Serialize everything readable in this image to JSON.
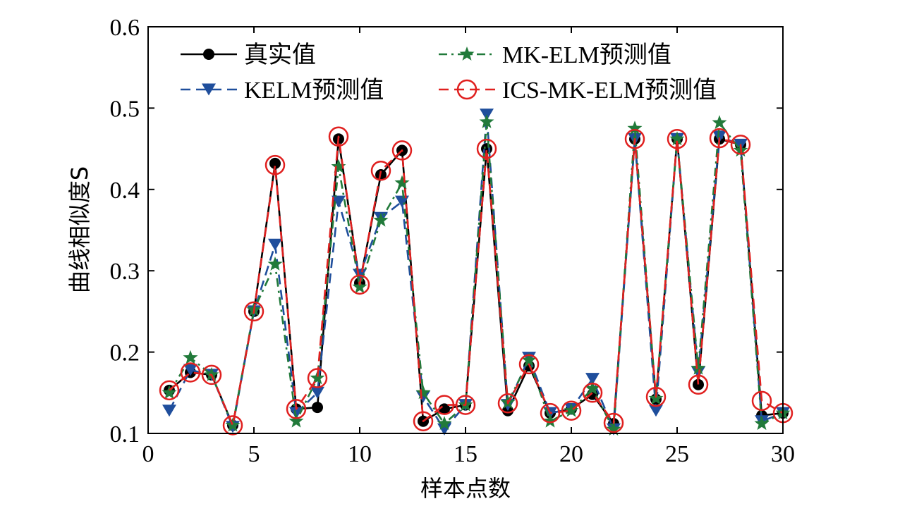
{
  "chart_data": {
    "type": "line",
    "xlabel": "样本点数",
    "ylabel": "曲线相似度S",
    "xlim": [
      0,
      30
    ],
    "ylim": [
      0.1,
      0.6
    ],
    "xticks": [
      "0",
      "5",
      "10",
      "15",
      "20",
      "25",
      "30"
    ],
    "yticks": [
      "0.1",
      "0.2",
      "0.3",
      "0.4",
      "0.5",
      "0.6"
    ],
    "grid": false,
    "legend_placement": "top, two columns",
    "x": [
      1,
      2,
      3,
      4,
      5,
      6,
      7,
      8,
      9,
      10,
      11,
      12,
      13,
      14,
      15,
      16,
      17,
      18,
      19,
      20,
      21,
      22,
      23,
      24,
      25,
      26,
      27,
      28,
      29,
      30
    ],
    "series": [
      {
        "name": "真实值",
        "color": "#000000",
        "line": "solid",
        "marker": "filled-circle",
        "values": [
          0.153,
          0.175,
          0.172,
          0.11,
          0.25,
          0.432,
          0.13,
          0.132,
          0.462,
          0.285,
          0.418,
          0.448,
          0.115,
          0.13,
          0.135,
          0.45,
          0.128,
          0.183,
          0.125,
          0.13,
          0.148,
          0.112,
          0.462,
          0.142,
          0.462,
          0.16,
          0.462,
          0.455,
          0.122,
          0.125
        ]
      },
      {
        "name": "KELM预测值",
        "color": "#1f4e9c",
        "line": "dashed",
        "marker": "down-triangle",
        "values": [
          0.128,
          0.178,
          0.172,
          0.108,
          0.25,
          0.332,
          0.125,
          0.15,
          0.385,
          0.295,
          0.365,
          0.385,
          0.145,
          0.105,
          0.135,
          0.492,
          0.135,
          0.193,
          0.125,
          0.13,
          0.167,
          0.105,
          0.462,
          0.128,
          0.462,
          0.175,
          0.465,
          0.455,
          0.115,
          0.125
        ]
      },
      {
        "name": "MK-ELM预测值",
        "color": "#217a3a",
        "line": "dash-dot",
        "marker": "star",
        "values": [
          0.15,
          0.193,
          0.172,
          0.11,
          0.252,
          0.308,
          0.115,
          0.168,
          0.428,
          0.28,
          0.362,
          0.408,
          0.15,
          0.112,
          0.135,
          0.483,
          0.138,
          0.19,
          0.115,
          0.128,
          0.155,
          0.105,
          0.475,
          0.143,
          0.462,
          0.18,
          0.482,
          0.448,
          0.112,
          0.125
        ]
      },
      {
        "name": "ICS-MK-ELM预测值",
        "color": "#e0201f",
        "line": "dashed",
        "marker": "open-circle",
        "values": [
          0.153,
          0.175,
          0.172,
          0.11,
          0.25,
          0.43,
          0.13,
          0.168,
          0.465,
          0.283,
          0.423,
          0.448,
          0.115,
          0.135,
          0.135,
          0.45,
          0.137,
          0.185,
          0.125,
          0.128,
          0.15,
          0.113,
          0.462,
          0.145,
          0.462,
          0.16,
          0.463,
          0.455,
          0.14,
          0.125
        ]
      }
    ]
  }
}
